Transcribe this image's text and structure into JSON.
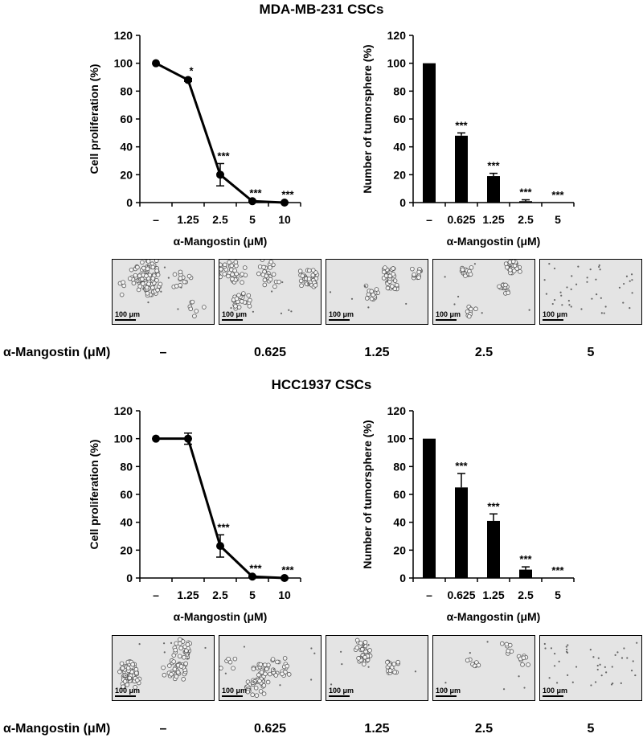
{
  "sections": [
    {
      "title": "MDA-MB-231 CSCs",
      "micro_labels": [
        "100 μm",
        "100 μm",
        "100 μm",
        "100 μm",
        "100 μm"
      ],
      "micro_row_label": "α-Mangostin (μM)",
      "micro_concentrations": [
        "–",
        "0.625",
        "1.25",
        "2.5",
        "5"
      ]
    },
    {
      "title": "HCC1937 CSCs",
      "micro_labels": [
        "100 μm",
        "100 μm",
        "100 μm",
        "100 μm",
        "100 μm"
      ],
      "micro_row_label": "α-Mangostin (μM)",
      "micro_concentrations": [
        "–",
        "0.625",
        "1.25",
        "2.5",
        "5"
      ]
    }
  ],
  "chart_data": [
    {
      "type": "line",
      "categories": [
        "–",
        "1.25",
        "2.5",
        "5",
        "10"
      ],
      "values": [
        100,
        88,
        20,
        1,
        0
      ],
      "errors": [
        0,
        1,
        8,
        0.5,
        0.3
      ],
      "annotations": [
        "",
        "*",
        "***",
        "***",
        "***"
      ],
      "xlabel": "α-Mangostin (μM)",
      "ylabel": "Cell proliferation (%)",
      "ylim": [
        0,
        120
      ],
      "yticks": [
        0,
        20,
        40,
        60,
        80,
        100,
        120
      ]
    },
    {
      "type": "bar",
      "categories": [
        "–",
        "0.625",
        "1.25",
        "2.5",
        "5"
      ],
      "values": [
        100,
        48,
        19,
        1,
        0
      ],
      "errors": [
        0,
        2,
        2,
        1,
        0
      ],
      "annotations": [
        "",
        "***",
        "***",
        "***",
        "***"
      ],
      "xlabel": "α-Mangostin (μM)",
      "ylabel": "Number of tumorsphere (%)",
      "ylim": [
        0,
        120
      ],
      "yticks": [
        0,
        20,
        40,
        60,
        80,
        100,
        120
      ]
    },
    {
      "type": "line",
      "categories": [
        "–",
        "1.25",
        "2.5",
        "5",
        "10"
      ],
      "values": [
        100,
        100,
        23,
        1,
        0
      ],
      "errors": [
        0,
        4,
        8,
        0.5,
        0.3
      ],
      "annotations": [
        "",
        "",
        "***",
        "***",
        "***"
      ],
      "xlabel": "α-Mangostin (μM)",
      "ylabel": "Cell proliferation (%)",
      "ylim": [
        0,
        120
      ],
      "yticks": [
        0,
        20,
        40,
        60,
        80,
        100,
        120
      ]
    },
    {
      "type": "bar",
      "categories": [
        "–",
        "0.625",
        "1.25",
        "2.5",
        "5"
      ],
      "values": [
        100,
        65,
        41,
        6,
        0
      ],
      "errors": [
        0,
        10,
        5,
        2,
        0
      ],
      "annotations": [
        "",
        "***",
        "***",
        "***",
        "***"
      ],
      "xlabel": "α-Mangostin (μM)",
      "ylabel": "Number of tumorsphere (%)",
      "ylim": [
        0,
        120
      ],
      "yticks": [
        0,
        20,
        40,
        60,
        80,
        100,
        120
      ]
    }
  ]
}
